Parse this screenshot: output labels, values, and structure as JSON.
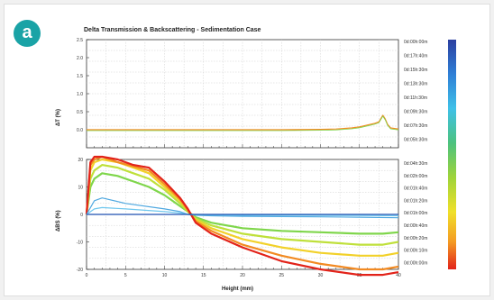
{
  "badge": "a",
  "colors": {
    "accent": "#1aa3a6"
  },
  "chart_data": [
    {
      "type": "line",
      "title": "Delta Transmission & Backscattering - Sedimentation Case",
      "ylabel": "ΔT (%)",
      "xlim": [
        0,
        40
      ],
      "ylim": [
        -0.5,
        2.5
      ],
      "yticks": [
        "2.5",
        "2.0",
        "1.5",
        "1.0",
        "0.5",
        "0.0"
      ],
      "grid": true,
      "series": [
        {
          "x": [
            0,
            5,
            10,
            15,
            20,
            25,
            30,
            32,
            34,
            35,
            36,
            37,
            37.5,
            38,
            38.3,
            38.6,
            39,
            40
          ],
          "values": [
            0,
            0,
            0,
            0,
            0,
            0,
            0.01,
            0.02,
            0.05,
            0.08,
            0.13,
            0.18,
            0.22,
            0.4,
            0.3,
            0.15,
            0.05,
            0.02
          ]
        }
      ]
    },
    {
      "type": "line",
      "ylabel": "ΔBS (%)",
      "xlabel": "Height (mm)",
      "xlim": [
        0,
        40
      ],
      "ylim": [
        -20,
        20
      ],
      "yticks": [
        "20",
        "10",
        "0",
        "-10",
        "-20"
      ],
      "xticks": [
        "0",
        "5",
        "10",
        "15",
        "20",
        "25",
        "30",
        "35",
        "40"
      ],
      "grid": true,
      "series": [
        {
          "x": [
            0,
            0.5,
            1,
            2,
            4,
            6,
            8,
            10,
            12,
            13,
            14,
            16,
            20,
            25,
            30,
            35,
            38,
            40
          ],
          "values": [
            0,
            10,
            13,
            15,
            14,
            12,
            10,
            7,
            3,
            1,
            -1,
            -3,
            -5,
            -6,
            -6.5,
            -7,
            -7,
            -6.5
          ]
        },
        {
          "x": [
            0,
            0.5,
            1,
            2,
            4,
            6,
            8,
            10,
            12,
            13,
            14,
            16,
            20,
            25,
            30,
            35,
            38,
            40
          ],
          "values": [
            0,
            13,
            16,
            18,
            17,
            15,
            13,
            9,
            4,
            1,
            -1.5,
            -4,
            -7,
            -9,
            -10,
            -11,
            -11,
            -10
          ]
        },
        {
          "x": [
            0,
            0.5,
            1,
            2,
            4,
            6,
            8,
            10,
            12,
            13,
            14,
            16,
            20,
            25,
            30,
            35,
            38,
            40
          ],
          "values": [
            0,
            16,
            19,
            20,
            19,
            17,
            15,
            10,
            5,
            1.5,
            -2,
            -5,
            -9,
            -12,
            -14,
            -15,
            -15,
            -14
          ]
        },
        {
          "x": [
            0,
            0.5,
            1,
            2,
            4,
            6,
            8,
            10,
            12,
            13,
            14,
            16,
            20,
            25,
            30,
            35,
            38,
            40
          ],
          "values": [
            0,
            18,
            20,
            21,
            19,
            17.5,
            16,
            11,
            5.5,
            1.5,
            -2.5,
            -6,
            -11,
            -15,
            -18,
            -20,
            -20,
            -19
          ]
        },
        {
          "x": [
            0,
            0.5,
            1,
            2,
            4,
            6,
            8,
            10,
            12,
            13,
            14,
            16,
            20,
            25,
            30,
            35,
            38,
            40
          ],
          "values": [
            0,
            19,
            21,
            21,
            20,
            18,
            17,
            12,
            6,
            2,
            -3,
            -7,
            -12,
            -17,
            -20,
            -22,
            -22,
            -21
          ]
        },
        {
          "x": [
            0,
            1,
            2,
            5,
            10,
            12,
            13,
            14,
            16,
            20,
            25,
            30,
            35,
            40
          ],
          "values": [
            0,
            5,
            6,
            4,
            2,
            1,
            0,
            -0.3,
            -0.5,
            -0.7,
            -0.8,
            -0.9,
            -1,
            -1.2
          ]
        },
        {
          "x": [
            0,
            1,
            2,
            5,
            10,
            12,
            13,
            14,
            16,
            20,
            25,
            30,
            35,
            40
          ],
          "values": [
            0,
            2,
            2.5,
            2,
            1,
            0.5,
            0,
            -0.1,
            -0.2,
            -0.3,
            -0.3,
            -0.4,
            -0.4,
            -0.5
          ]
        },
        {
          "x": [
            0,
            40
          ],
          "values": [
            0,
            0
          ]
        }
      ]
    }
  ],
  "legend": {
    "labels": [
      "0d:00h:00m",
      "0d:17h:40m",
      "0d:15h:30m",
      "0d:13h:30m",
      "0d:11h:30m",
      "0d:09h:30m",
      "0d:07h:30m",
      "0d:05h:30m",
      "0d:04h:30m",
      "0d:02h:00m",
      "0d:01h:40m",
      "0d:01h:20m",
      "0d:01h:00m",
      "0d:00h:40m",
      "0d:00h:20m",
      "0d:00h:10m",
      "0d:00h:00m"
    ]
  }
}
